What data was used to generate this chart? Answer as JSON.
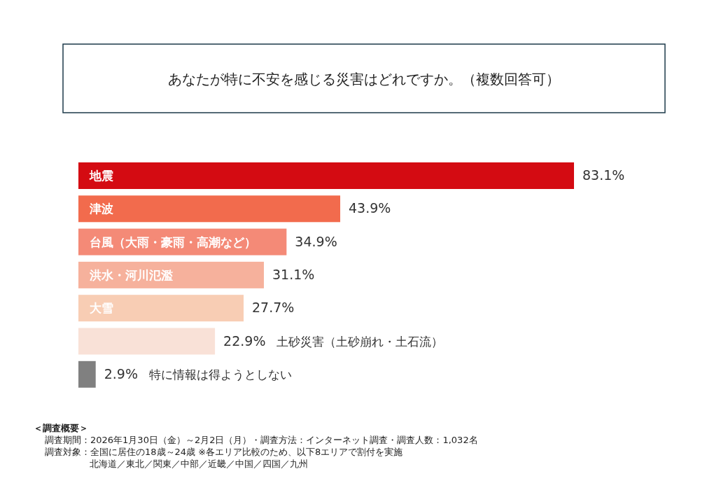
{
  "chart_data": {
    "type": "bar",
    "orientation": "horizontal",
    "title": "あなたが特に不安を感じる災害はどれですか。（複数回答可）",
    "categories": [
      "地震",
      "津波",
      "台風（大雨・豪雨・高潮など）",
      "洪水・河川氾濫",
      "大雪",
      "土砂災害（土砂崩れ・土石流）",
      "特に情報は得ようとしない"
    ],
    "values": [
      83.1,
      43.9,
      34.9,
      31.1,
      27.7,
      22.9,
      2.9
    ],
    "value_labels": [
      "83.1%",
      "43.9%",
      "34.9%",
      "31.1%",
      "27.7%",
      "22.9%",
      "2.9%"
    ],
    "colors": [
      "#d40b12",
      "#f26b4d",
      "#f48a77",
      "#f6b19c",
      "#f8cdb4",
      "#f9e1d7",
      "#808080"
    ],
    "annotations": [
      "＜調査概要＞",
      "調査期間：2026年1月30日（金）～2月2日（月）・調査方法：インターネット調査・調査人数：1,032名",
      "調査対象：全国に居住の18歳～24歳 ※各エリア比較のため、以下8エリアで割付を実施",
      "北海道／東北／関東／中部／近畿／中国／四国／九州"
    ]
  }
}
